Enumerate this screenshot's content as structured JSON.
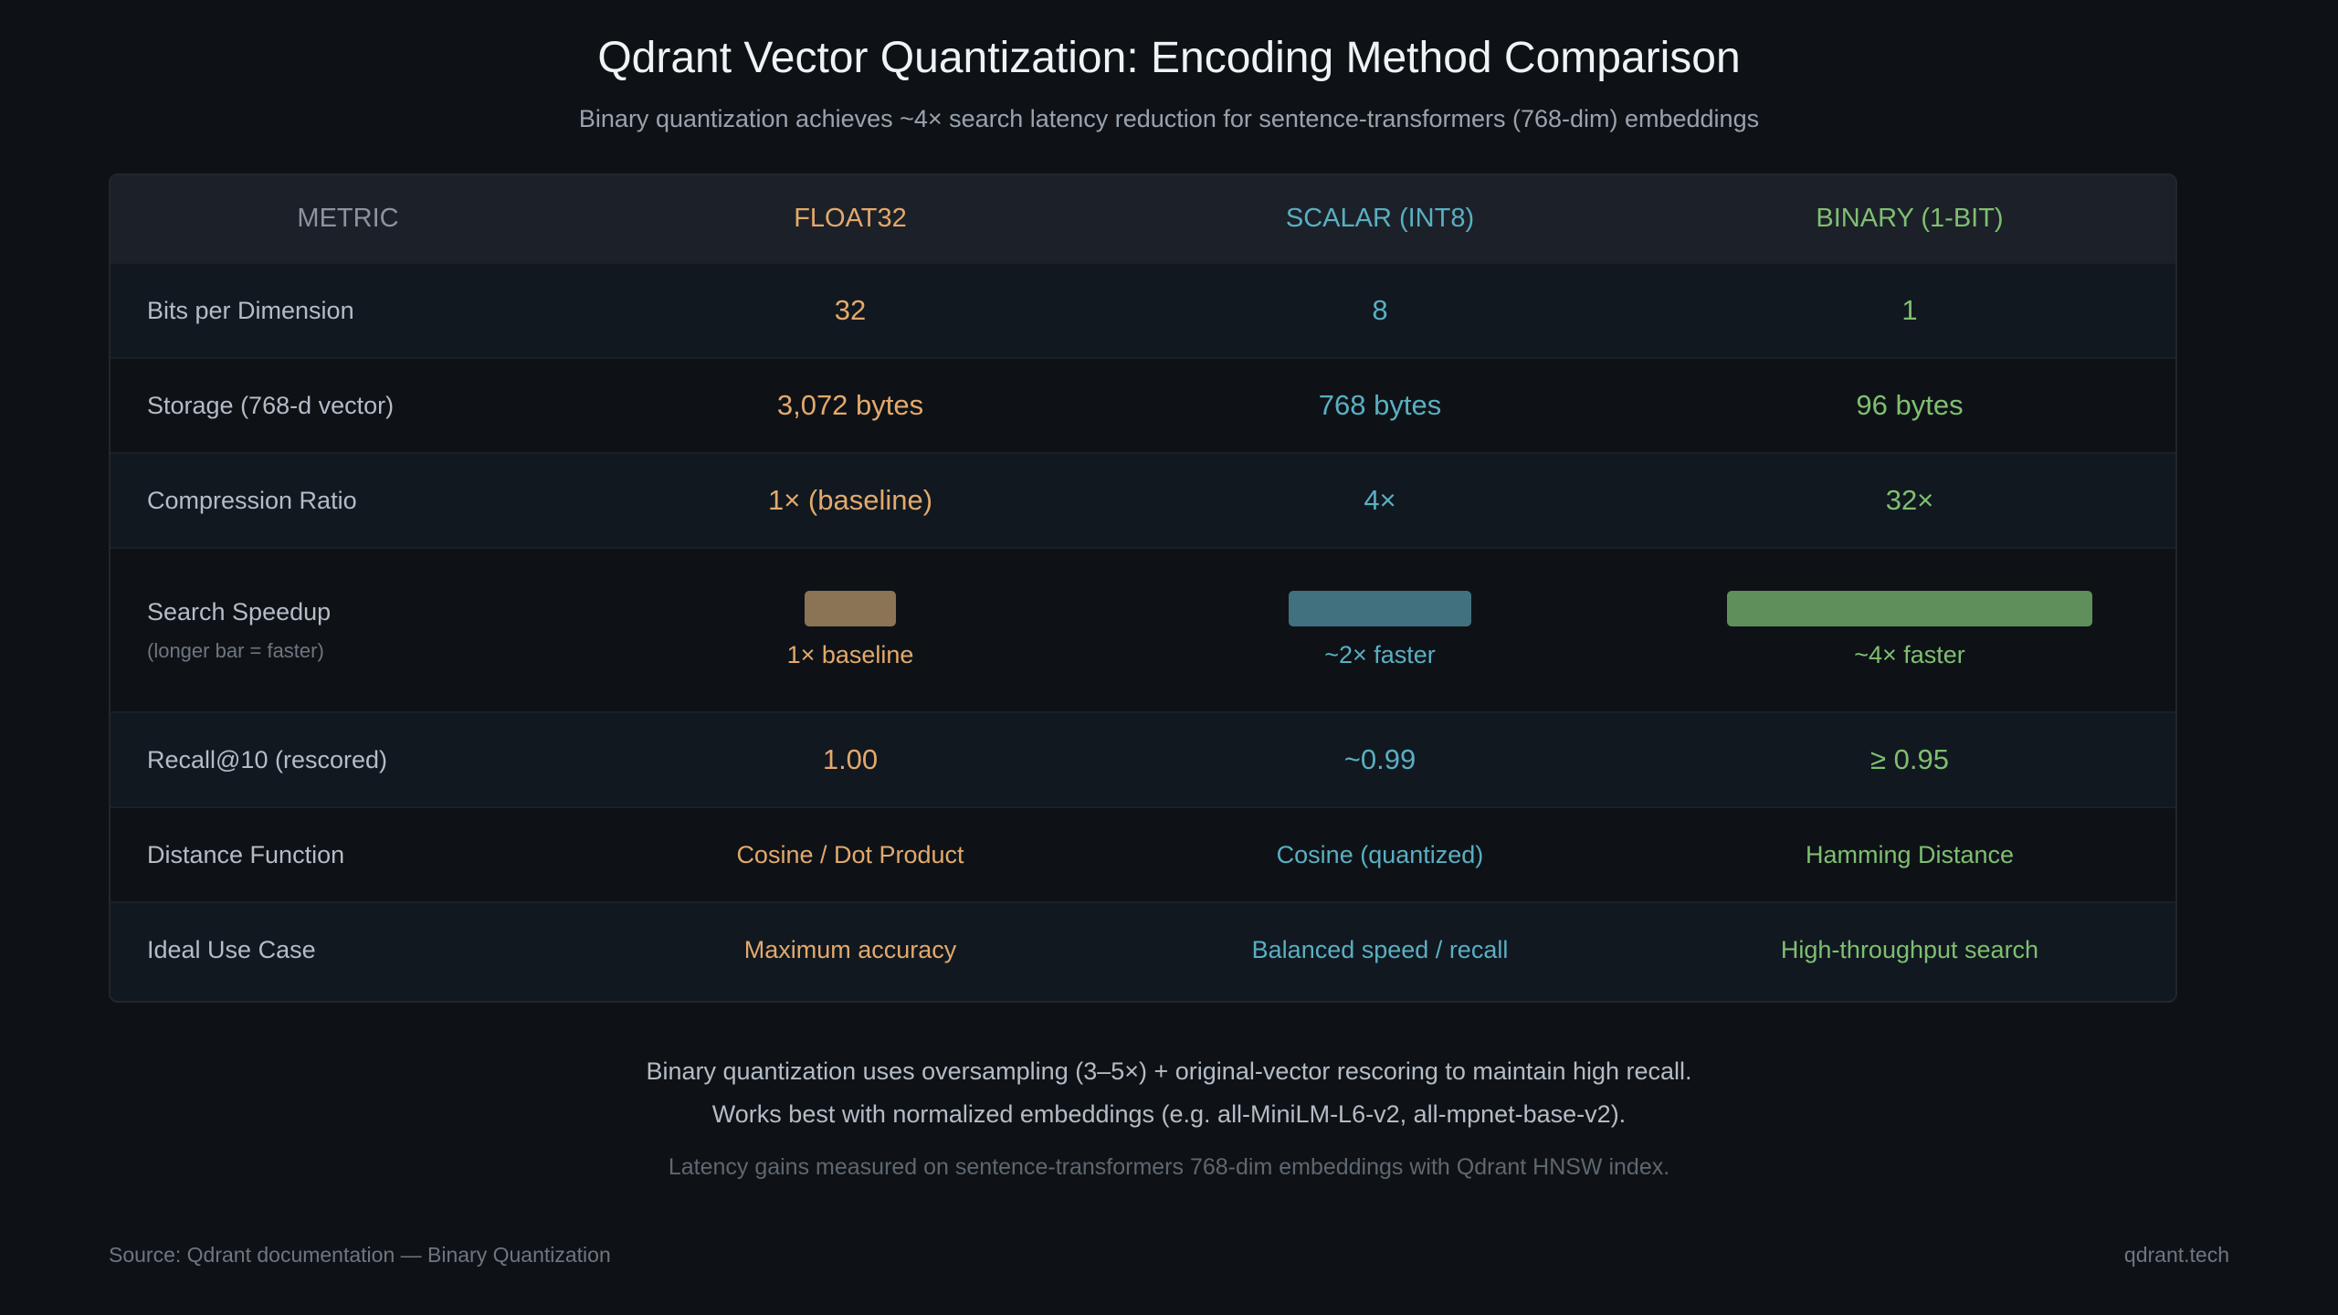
{
  "header": {
    "title": "Qdrant Vector Quantization: Encoding Method Comparison",
    "subtitle": "Binary quantization achieves ~4× search latency reduction for sentence-transformers (768-dim) embeddings"
  },
  "colors": {
    "float32": "#e3a96b",
    "scalar": "#5aafc2",
    "binary": "#7fbf70",
    "bar_float32": "#8b7355",
    "bar_scalar": "#41717e",
    "bar_binary": "#5f8f5a"
  },
  "table": {
    "columns": [
      "METRIC",
      "FLOAT32",
      "SCALAR (INT8)",
      "BINARY (1-BIT)"
    ],
    "rows": [
      {
        "metric": "Bits per Dimension",
        "values": [
          "32",
          "8",
          "1"
        ]
      },
      {
        "metric": "Storage (768-d vector)",
        "values": [
          "3,072 bytes",
          "768 bytes",
          "96 bytes"
        ]
      },
      {
        "metric": "Compression Ratio",
        "values": [
          "1× (baseline)",
          "4×",
          "32×"
        ]
      },
      {
        "metric": "Search Speedup",
        "sub": "(longer bar = faster)",
        "values": [
          "1× baseline",
          "~2× faster",
          "~4× faster"
        ],
        "speedup": [
          1,
          2,
          4
        ]
      },
      {
        "metric": "Recall@10 (rescored)",
        "values": [
          "1.00",
          "~0.99",
          "≥ 0.95"
        ]
      },
      {
        "metric": "Distance Function",
        "values": [
          "Cosine / Dot Product",
          "Cosine (quantized)",
          "Hamming Distance"
        ]
      },
      {
        "metric": "Ideal Use Case",
        "values": [
          "Maximum accuracy",
          "Balanced speed / recall",
          "High-throughput search"
        ]
      }
    ]
  },
  "notes": [
    "Binary quantization uses oversampling (3–5×) + original-vector rescoring to maintain high recall.",
    "Works best with normalized embeddings (e.g. all-MiniLM-L6-v2, all-mpnet-base-v2).",
    "Latency gains measured on sentence-transformers 768-dim embeddings with Qdrant HNSW index."
  ],
  "footer": {
    "source": "Source: Qdrant documentation — Binary Quantization",
    "site": "qdrant.tech"
  }
}
